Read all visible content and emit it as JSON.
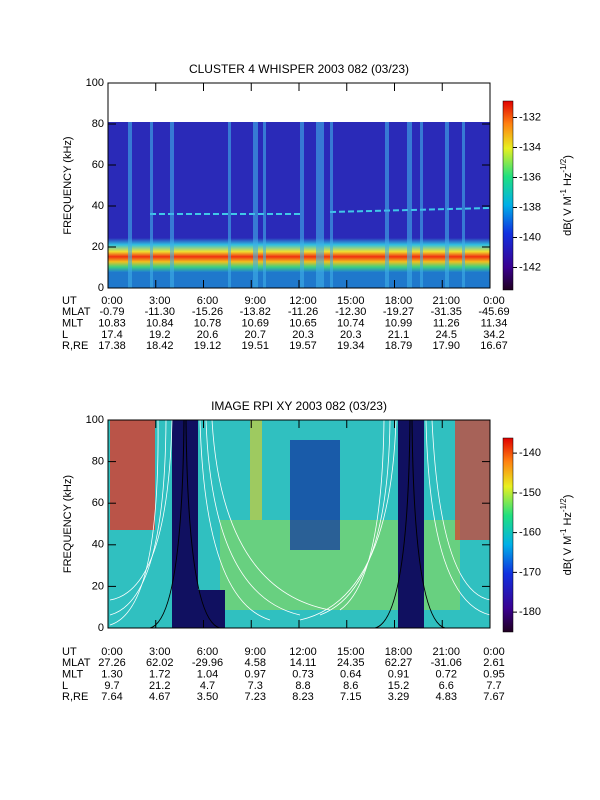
{
  "chart_data": [
    {
      "type": "heatmap",
      "title": "CLUSTER 4 WHISPER 2003 082 (03/23)",
      "ylabel": "FREQUENCY (kHz)",
      "ylim": [
        0,
        100
      ],
      "yticks": [
        0,
        20,
        40,
        60,
        80,
        100
      ],
      "xlabel": "UT",
      "xlim": [
        0,
        24
      ],
      "xticks": [
        {
          "value": 0,
          "label": "0:00"
        },
        {
          "value": 3,
          "label": "3:00"
        },
        {
          "value": 6,
          "label": "6:00"
        },
        {
          "value": 9,
          "label": "9:00"
        },
        {
          "value": 12,
          "label": "12:00"
        },
        {
          "value": 15,
          "label": "15:00"
        },
        {
          "value": 18,
          "label": "18:00"
        },
        {
          "value": 21,
          "label": "21:00"
        },
        {
          "value": 24,
          "label": "0:00"
        }
      ],
      "orbit_rows": [
        {
          "name": "MLAT",
          "values": [
            "-0.79",
            "-11.30",
            "-15.26",
            "-13.82",
            "-11.26",
            "-12.30",
            "-19.27",
            "-31.35",
            "-45.69"
          ]
        },
        {
          "name": "MLT",
          "values": [
            "10.83",
            "10.84",
            "10.78",
            "10.69",
            "10.65",
            "10.74",
            "10.99",
            "11.26",
            "11.34"
          ]
        },
        {
          "name": "L",
          "values": [
            "17.4",
            "19.2",
            "20.6",
            "20.7",
            "20.3",
            "20.3",
            "21.1",
            "24.5",
            "34.2"
          ]
        },
        {
          "name": "R,RE",
          "values": [
            "17.38",
            "18.42",
            "19.12",
            "19.51",
            "19.57",
            "19.34",
            "18.79",
            "17.90",
            "16.67"
          ]
        }
      ],
      "colorbar": {
        "label": [
          "dB( V M",
          "-1",
          " Hz",
          "-1/2",
          ")"
        ],
        "clim": [
          -143.5,
          -130.9
        ],
        "ticks": [
          -132,
          -134,
          -136,
          -138,
          -140,
          -142
        ]
      }
    },
    {
      "type": "heatmap",
      "title": "IMAGE RPI XY 2003 082 (03/23)",
      "ylabel": "FREQUENCY (kHz)",
      "ylim": [
        0,
        100
      ],
      "yticks": [
        0,
        20,
        40,
        60,
        80,
        100
      ],
      "xlabel": "UT",
      "xlim": [
        0,
        24
      ],
      "xticks": [
        {
          "value": 0,
          "label": "0:00"
        },
        {
          "value": 3,
          "label": "3:00"
        },
        {
          "value": 6,
          "label": "6:00"
        },
        {
          "value": 9,
          "label": "9:00"
        },
        {
          "value": 12,
          "label": "12:00"
        },
        {
          "value": 15,
          "label": "15:00"
        },
        {
          "value": 18,
          "label": "18:00"
        },
        {
          "value": 21,
          "label": "21:00"
        },
        {
          "value": 24,
          "label": "0:00"
        }
      ],
      "orbit_rows": [
        {
          "name": "MLAT",
          "values": [
            "27.26",
            "62.02",
            "-29.96",
            "4.58",
            "14.11",
            "24.35",
            "62.27",
            "-31.06",
            "2.61"
          ]
        },
        {
          "name": "MLT",
          "values": [
            "1.30",
            "1.72",
            "1.04",
            "0.97",
            "0.73",
            "0.64",
            "0.91",
            "0.72",
            "0.95"
          ]
        },
        {
          "name": "L",
          "values": [
            "9.7",
            "21.2",
            "4.7",
            "7.3",
            "8.8",
            "8.6",
            "15.2",
            "6.6",
            "7.7"
          ]
        },
        {
          "name": "R,RE",
          "values": [
            "7.64",
            "4.67",
            "3.50",
            "7.23",
            "8.23",
            "7.15",
            "3.29",
            "4.83",
            "7.67"
          ]
        }
      ],
      "colorbar": {
        "label": [
          "dB( V M",
          "-1",
          " Hz",
          "-1/2",
          ")"
        ],
        "clim": [
          -185,
          -136.2
        ],
        "ticks": [
          -140,
          -150,
          -160,
          -170,
          -180
        ]
      }
    }
  ]
}
